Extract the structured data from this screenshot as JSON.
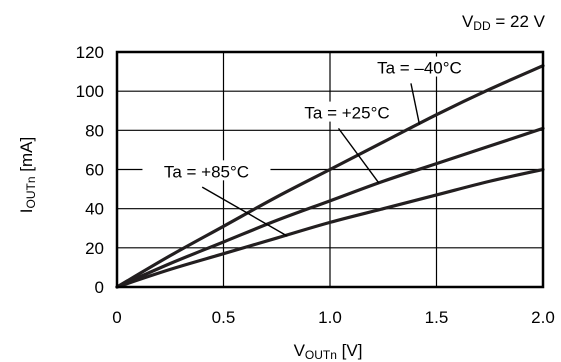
{
  "chart_data": {
    "type": "line",
    "title": "",
    "condition": {
      "main": "V",
      "sub": "DD",
      "rest": " = 22 V"
    },
    "xlabel": {
      "main": "V",
      "sub": "OUTn",
      "rest": " [V]"
    },
    "ylabel": {
      "main": "I",
      "sub": "OUTn",
      "rest": " [mA]"
    },
    "xlim": [
      0,
      2.0
    ],
    "ylim": [
      0,
      120
    ],
    "xticks": [
      0,
      0.5,
      1.0,
      1.5,
      2.0
    ],
    "xtick_labels": [
      "0",
      "0.5",
      "1.0",
      "1.5",
      "2.0"
    ],
    "yticks": [
      0,
      20,
      40,
      60,
      80,
      100,
      120
    ],
    "ytick_labels": [
      "0",
      "20",
      "40",
      "60",
      "80",
      "100",
      "120"
    ],
    "grid": true,
    "series": [
      {
        "name": "Ta = –40°C",
        "x": [
          0,
          0.25,
          0.5,
          0.75,
          1.0,
          1.25,
          1.5,
          1.75,
          2.0
        ],
        "y": [
          0,
          16,
          31,
          46,
          60,
          74,
          88,
          101,
          113
        ]
      },
      {
        "name": "Ta = +25°C",
        "x": [
          0,
          0.25,
          0.5,
          0.75,
          1.0,
          1.25,
          1.5,
          1.75,
          2.0
        ],
        "y": [
          0,
          12,
          23,
          34,
          44,
          54,
          63,
          72,
          81
        ]
      },
      {
        "name": "Ta = +85°C",
        "x": [
          0,
          0.25,
          0.5,
          0.75,
          1.0,
          1.25,
          1.5,
          1.75,
          2.0
        ],
        "y": [
          0,
          9,
          17,
          25,
          33,
          40,
          47,
          54,
          60
        ]
      }
    ]
  }
}
